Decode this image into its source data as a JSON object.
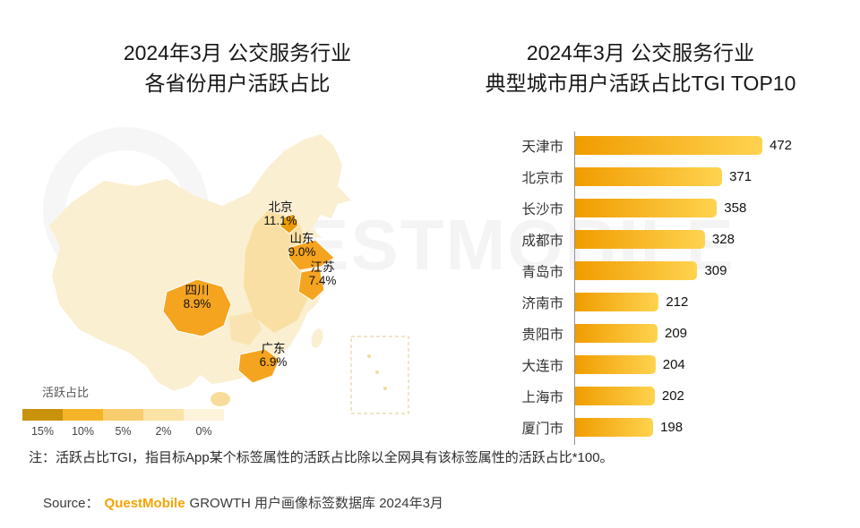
{
  "watermark": {
    "text": "QUESTMOBILE"
  },
  "left_panel": {
    "title_line1": "2024年3月 公交服务行业",
    "title_line2": "各省份用户活跃占比"
  },
  "right_panel": {
    "title_line1": "2024年3月 公交服务行业",
    "title_line2": "典型城市用户活跃占比TGI TOP10"
  },
  "note": "注：活跃占比TGI，指目标App某个标签属性的活跃占比除以全网具有该标签属性的活跃占比*100。",
  "source": {
    "prefix": "Source：",
    "brand": "QuestMobile",
    "suffix": "GROWTH 用户画像标签数据库 2024年3月"
  },
  "colors": {
    "accent_orange": "#F5A400",
    "map_base": "#FBEFD2",
    "map_mid": "#F8DC9B",
    "map_high": "#F5A41F"
  },
  "chart_data": [
    {
      "type": "heatmap",
      "subtype": "china-choropleth",
      "title": "2024年3月 公交服务行业 各省份用户活跃占比",
      "unit": "%",
      "labeled_regions": [
        {
          "region": "北京",
          "value": 11.1
        },
        {
          "region": "山东",
          "value": 9.0
        },
        {
          "region": "江苏",
          "value": 7.4
        },
        {
          "region": "四川",
          "value": 8.9
        },
        {
          "region": "广东",
          "value": 6.9
        }
      ],
      "legend": {
        "title": "活跃占比",
        "scale_labels": [
          "15%",
          "10%",
          "5%",
          "2%",
          "0%"
        ],
        "scale_colors": [
          "#C8920B",
          "#F5B327",
          "#F8CD6E",
          "#FBE3A6",
          "#FDF3DB"
        ]
      }
    },
    {
      "type": "bar",
      "orientation": "horizontal",
      "title": "2024年3月 公交服务行业 典型城市用户活跃占比TGI TOP10",
      "categories": [
        "天津市",
        "北京市",
        "长沙市",
        "成都市",
        "青岛市",
        "济南市",
        "贵阳市",
        "大连市",
        "上海市",
        "厦门市"
      ],
      "values": [
        472,
        371,
        358,
        328,
        309,
        212,
        209,
        204,
        202,
        198
      ],
      "xlim": [
        0,
        500
      ],
      "value_labels_shown": true,
      "bar_gradient": [
        "#F09C00",
        "#FFD34F"
      ],
      "legend_position": "none",
      "grid": false
    }
  ]
}
